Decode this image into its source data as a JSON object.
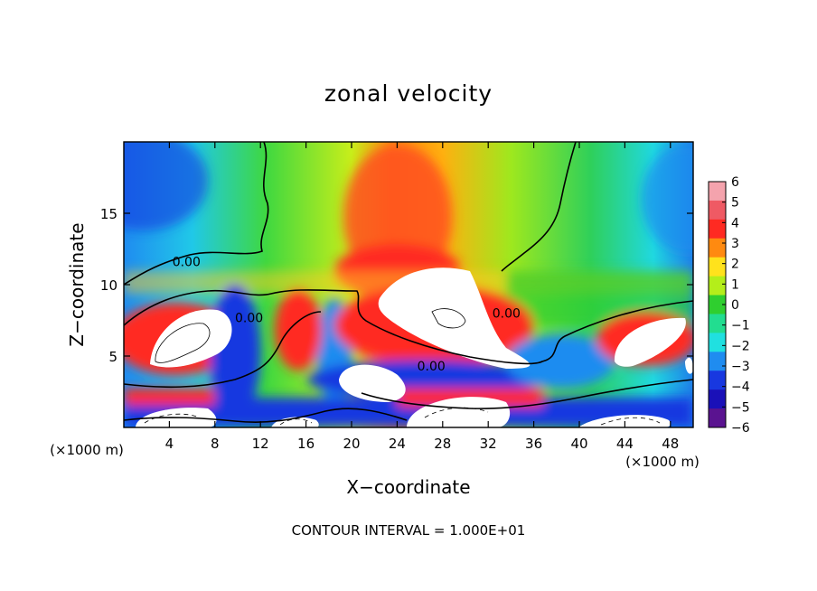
{
  "chart_data": {
    "type": "heatmap",
    "title": "zonal velocity",
    "xlabel": "X−coordinate",
    "ylabel": "Z−coordinate",
    "x_unit_left": "(×1000 m)",
    "x_unit_right": "(×1000 m)",
    "x_ticks": [
      4,
      8,
      12,
      16,
      20,
      24,
      28,
      32,
      36,
      40,
      44,
      48
    ],
    "y_ticks": [
      5,
      10,
      15
    ],
    "xlim": [
      0,
      50
    ],
    "ylim": [
      0,
      20
    ],
    "colorbar": {
      "ticks": [
        "6",
        "5",
        "4",
        "3",
        "2",
        "1",
        "0",
        "−1",
        "−2",
        "−3",
        "−4",
        "−5",
        "−6"
      ],
      "levels": [
        {
          "value": 5.5,
          "color": "#f4a3ad"
        },
        {
          "value": 4.5,
          "color": "#ef5a64"
        },
        {
          "value": 3.5,
          "color": "#ff2a22"
        },
        {
          "value": 2.5,
          "color": "#ff8a10"
        },
        {
          "value": 1.5,
          "color": "#ffe21c"
        },
        {
          "value": 0.5,
          "color": "#b4ee1a"
        },
        {
          "value": -0.5,
          "color": "#2fcf2f"
        },
        {
          "value": -1.5,
          "color": "#22dd90"
        },
        {
          "value": -2.5,
          "color": "#20e0e0"
        },
        {
          "value": -3.5,
          "color": "#1f8cf0"
        },
        {
          "value": -4.5,
          "color": "#1838e0"
        },
        {
          "value": -5.5,
          "color": "#1a10b8"
        },
        {
          "value": -6.0,
          "color": "#5a1390"
        }
      ]
    },
    "contour_labels": [
      {
        "text": "0.00",
        "x": 5.5,
        "y": 11.6
      },
      {
        "text": "0.00",
        "x": 11.0,
        "y": 7.7
      },
      {
        "text": "0.00",
        "x": 27.0,
        "y": 4.3
      },
      {
        "text": "0.00",
        "x": 33.6,
        "y": 8.0
      }
    ],
    "footer": "CONTOUR INTERVAL = 1.000E+01"
  }
}
